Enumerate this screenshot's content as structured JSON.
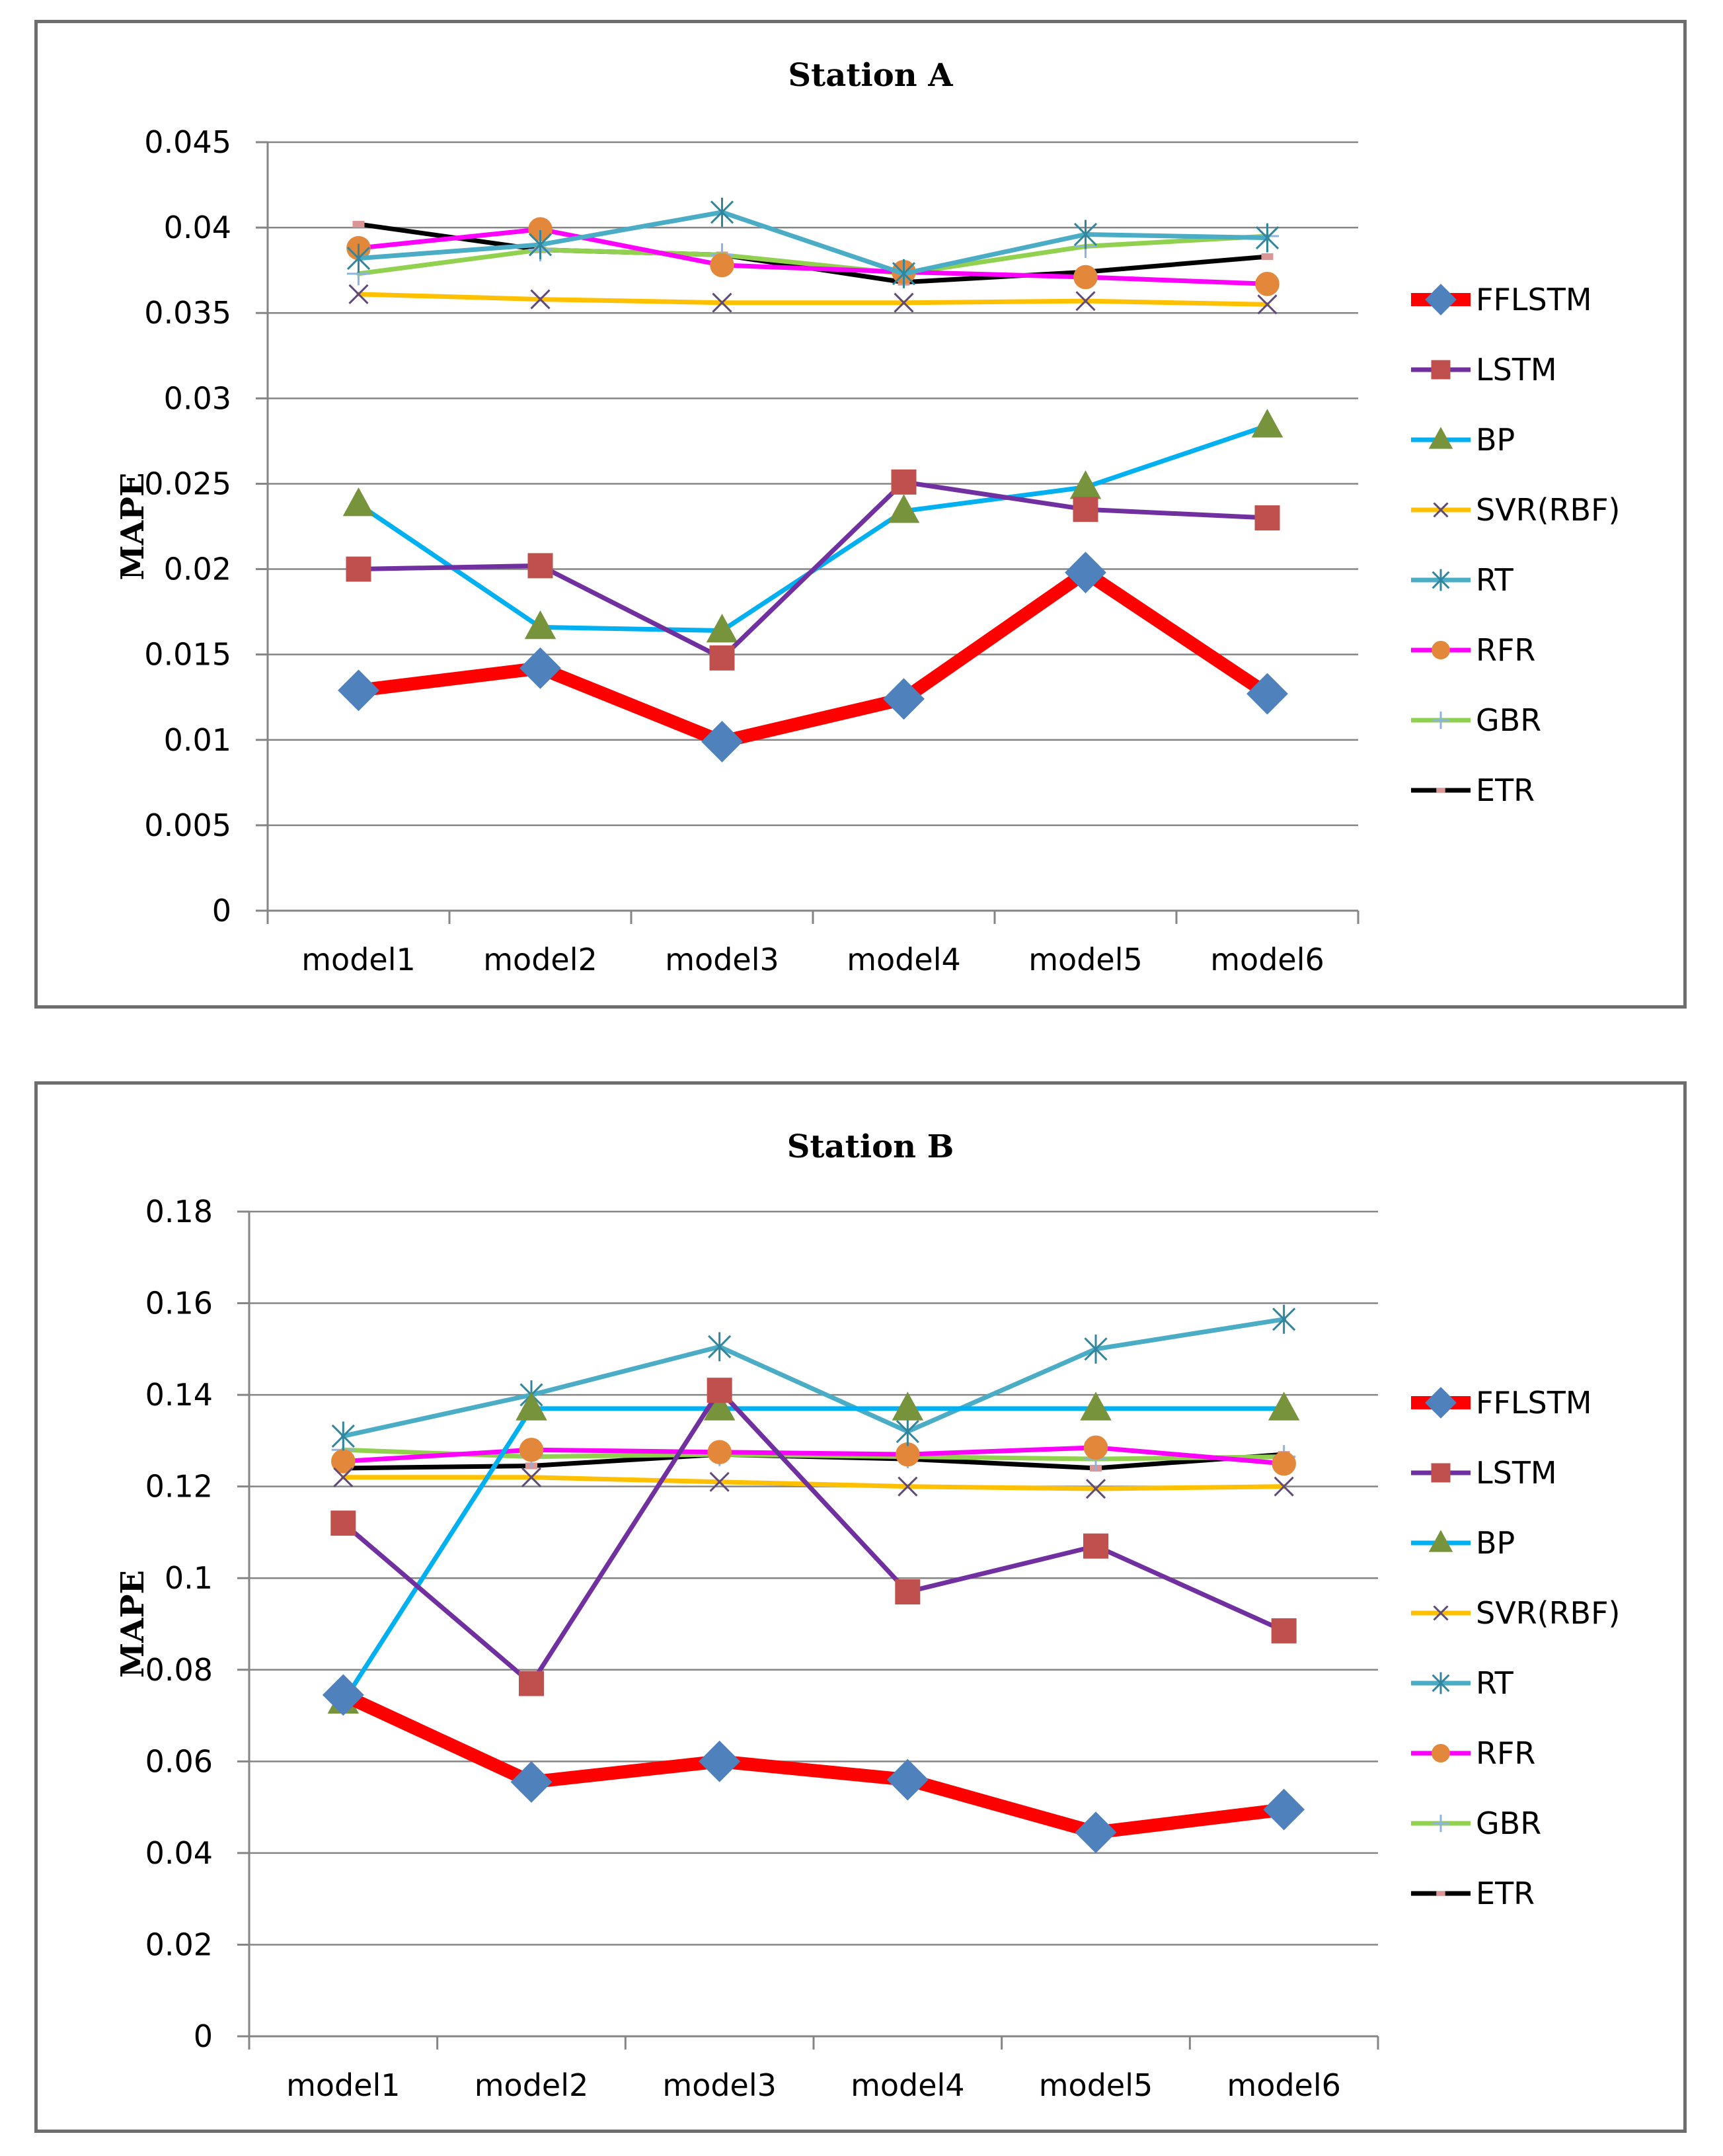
{
  "chart_data": [
    {
      "type": "line",
      "title": "Station A",
      "xlabel": "",
      "ylabel": "MAPE",
      "ylim": [
        0,
        0.045
      ],
      "ytick_step": 0.005,
      "yticks": [
        "0",
        "0.005",
        "0.01",
        "0.015",
        "0.02",
        "0.025",
        "0.03",
        "0.035",
        "0.04",
        "0.045"
      ],
      "categories": [
        "model1",
        "model2",
        "model3",
        "model4",
        "model5",
        "model6"
      ],
      "legend_position": "right",
      "series": [
        {
          "name": "FFLSTM",
          "color": "#ff0000",
          "marker": "diamond",
          "marker_color": "#4f81bd",
          "values": [
            0.0129,
            0.0142,
            0.0099,
            0.0124,
            0.0198,
            0.0127
          ]
        },
        {
          "name": "LSTM",
          "color": "#7030a0",
          "marker": "square",
          "marker_color": "#c0504d",
          "values": [
            0.02,
            0.0202,
            0.0148,
            0.0251,
            0.0235,
            0.023
          ]
        },
        {
          "name": "BP",
          "color": "#00b0f0",
          "marker": "triangle",
          "marker_color": "#77933c",
          "values": [
            0.0238,
            0.0166,
            0.0164,
            0.0234,
            0.0248,
            0.0284
          ]
        },
        {
          "name": "SVR(RBF)",
          "color": "#ffc000",
          "marker": "x",
          "marker_color": "#604a7b",
          "values": [
            0.0361,
            0.0358,
            0.0356,
            0.0356,
            0.0357,
            0.0355
          ]
        },
        {
          "name": "RT",
          "color": "#4bacc6",
          "marker": "star",
          "marker_color": "#31859c",
          "values": [
            0.0382,
            0.039,
            0.0409,
            0.0373,
            0.0396,
            0.0394
          ]
        },
        {
          "name": "RFR",
          "color": "#ff00ff",
          "marker": "circle",
          "marker_color": "#e3883a",
          "values": [
            0.0388,
            0.0399,
            0.0378,
            0.0374,
            0.0371,
            0.0367
          ]
        },
        {
          "name": "GBR",
          "color": "#92d050",
          "marker": "plus",
          "marker_color": "#8db3e2",
          "values": [
            0.0373,
            0.0387,
            0.0384,
            0.0373,
            0.0389,
            0.0395
          ]
        },
        {
          "name": "ETR",
          "color": "#000000",
          "marker": "dash",
          "marker_color": "#d99694",
          "values": [
            0.0402,
            0.0387,
            0.0384,
            0.0368,
            0.0374,
            0.0383
          ]
        }
      ]
    },
    {
      "type": "line",
      "title": "Station B",
      "xlabel": "",
      "ylabel": "MAPE",
      "ylim": [
        0,
        0.18
      ],
      "ytick_step": 0.02,
      "yticks": [
        "0",
        "0.02",
        "0.04",
        "0.06",
        "0.08",
        "0.1",
        "0.12",
        "0.14",
        "0.16",
        "0.18"
      ],
      "categories": [
        "model1",
        "model2",
        "model3",
        "model4",
        "model5",
        "model6"
      ],
      "legend_position": "right",
      "series": [
        {
          "name": "FFLSTM",
          "color": "#ff0000",
          "marker": "diamond",
          "marker_color": "#4f81bd",
          "values": [
            0.0745,
            0.0555,
            0.06,
            0.056,
            0.0445,
            0.0495
          ]
        },
        {
          "name": "LSTM",
          "color": "#7030a0",
          "marker": "square",
          "marker_color": "#c0504d",
          "values": [
            0.112,
            0.077,
            0.141,
            0.097,
            0.107,
            0.0885
          ]
        },
        {
          "name": "BP",
          "color": "#00b0f0",
          "marker": "triangle",
          "marker_color": "#77933c",
          "values": [
            0.073,
            0.137,
            0.137,
            0.137,
            0.137,
            0.137
          ]
        },
        {
          "name": "SVR(RBF)",
          "color": "#ffc000",
          "marker": "x",
          "marker_color": "#604a7b",
          "values": [
            0.122,
            0.122,
            0.121,
            0.12,
            0.1195,
            0.12
          ]
        },
        {
          "name": "RT",
          "color": "#4bacc6",
          "marker": "star",
          "marker_color": "#31859c",
          "values": [
            0.131,
            0.14,
            0.1505,
            0.132,
            0.15,
            0.1565
          ]
        },
        {
          "name": "RFR",
          "color": "#ff00ff",
          "marker": "circle",
          "marker_color": "#e3883a",
          "values": [
            0.1255,
            0.128,
            0.1275,
            0.127,
            0.1285,
            0.125
          ]
        },
        {
          "name": "GBR",
          "color": "#92d050",
          "marker": "plus",
          "marker_color": "#8db3e2",
          "values": [
            0.128,
            0.1265,
            0.127,
            0.1265,
            0.126,
            0.1265
          ]
        },
        {
          "name": "ETR",
          "color": "#000000",
          "marker": "dash",
          "marker_color": "#d99694",
          "values": [
            0.124,
            0.1245,
            0.127,
            0.126,
            0.124,
            0.127
          ]
        }
      ]
    }
  ]
}
